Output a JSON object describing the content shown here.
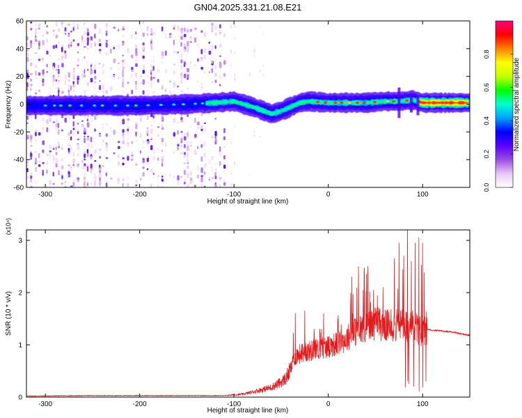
{
  "title": "GN04.2025.331.21.08.E21",
  "chart_data": [
    {
      "type": "heatmap",
      "xlabel": "Height of straight line (km)",
      "ylabel": "Frequency (Hz)",
      "xlim": [
        -320,
        150
      ],
      "ylim": [
        -60,
        60
      ],
      "xticks": [
        -300,
        -200,
        -100,
        0,
        100
      ],
      "yticks": [
        -60,
        -40,
        -20,
        0,
        20,
        40,
        60
      ],
      "colorbar": {
        "label": "Normalized spectral amplitude",
        "range": [
          0,
          1
        ],
        "ticks": [
          "0.0",
          "0.2",
          "0.4",
          "0.6",
          "0.8"
        ],
        "colormap": [
          "#ffffff",
          "#e9c7f5",
          "#9b4de0",
          "#5a00ff",
          "#0000ff",
          "#00a0ff",
          "#00ffd0",
          "#00ff00",
          "#c8ff00",
          "#ffff00",
          "#ff8000",
          "#ff0000",
          "#ff0080"
        ]
      },
      "ridge": [
        [
          -320,
          -1
        ],
        [
          -250,
          -1
        ],
        [
          -200,
          -1
        ],
        [
          -150,
          0
        ],
        [
          -120,
          1
        ],
        [
          -100,
          2
        ],
        [
          -80,
          -2
        ],
        [
          -60,
          -7
        ],
        [
          -50,
          -5
        ],
        [
          -40,
          -2
        ],
        [
          -30,
          1
        ],
        [
          -20,
          2
        ],
        [
          0,
          1
        ],
        [
          20,
          1
        ],
        [
          40,
          1
        ],
        [
          60,
          2
        ],
        [
          75,
          2
        ],
        [
          90,
          3
        ],
        [
          100,
          1
        ],
        [
          120,
          1
        ],
        [
          150,
          1
        ]
      ],
      "noise_band_x": [
        -320,
        -110
      ],
      "grid": false
    },
    {
      "type": "line",
      "xlabel": "Height of straight line (km)",
      "ylabel": "SNR (10 * v/v)",
      "y_multiplier": "(x10⁴)",
      "xlim": [
        -320,
        150
      ],
      "ylim": [
        0,
        3.2
      ],
      "xticks": [
        -300,
        -200,
        -100,
        0,
        100
      ],
      "yticks": [
        0,
        1,
        2,
        3
      ],
      "color": "#e41a1c",
      "envelope": {
        "x": [
          -320,
          -250,
          -200,
          -150,
          -110,
          -90,
          -70,
          -60,
          -50,
          -45,
          -40,
          -35,
          -30,
          -20,
          -10,
          0,
          10,
          20,
          25,
          30,
          40,
          50,
          60,
          70,
          75,
          80,
          85,
          90,
          95,
          100,
          105,
          110,
          130,
          150
        ],
        "y": [
          0.02,
          0.03,
          0.03,
          0.03,
          0.03,
          0.06,
          0.15,
          0.2,
          0.3,
          0.38,
          0.55,
          0.8,
          0.85,
          0.9,
          0.95,
          1.0,
          1.05,
          1.15,
          1.25,
          1.3,
          1.4,
          1.45,
          1.4,
          1.4,
          1.4,
          1.45,
          1.35,
          1.4,
          1.3,
          1.3,
          1.3,
          1.28,
          1.25,
          1.18
        ]
      },
      "peaks": [
        [
          -80,
          0.3
        ],
        [
          -45,
          0.9
        ],
        [
          -35,
          1.6
        ],
        [
          -25,
          1.65
        ],
        [
          -15,
          1.3
        ],
        [
          -5,
          1.6
        ],
        [
          10,
          1.5
        ],
        [
          25,
          2.3
        ],
        [
          32,
          2.5
        ],
        [
          38,
          2.4
        ],
        [
          42,
          2.5
        ],
        [
          48,
          2.05
        ],
        [
          58,
          2.1
        ],
        [
          70,
          2.65
        ],
        [
          75,
          2.95
        ],
        [
          80,
          2.7
        ],
        [
          84,
          3.3
        ],
        [
          88,
          2.6
        ],
        [
          92,
          2.95
        ],
        [
          96,
          3.05
        ],
        [
          100,
          2.95
        ]
      ],
      "grid": false
    }
  ]
}
